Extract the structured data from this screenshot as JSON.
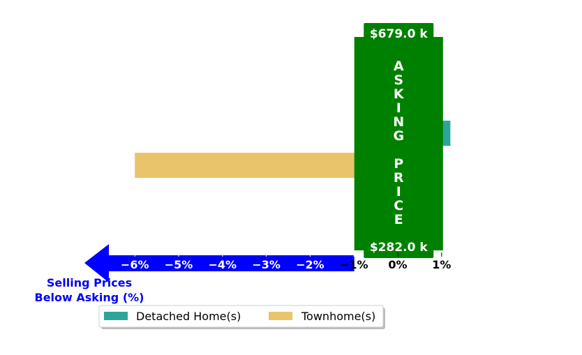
{
  "chart_data": {
    "type": "bar",
    "orientation": "horizontal",
    "x_unit": "percent relative to asking price",
    "xlim": [
      -6.0,
      1.0
    ],
    "x_ticks": [
      -6,
      -5,
      -4,
      -3,
      -2,
      -1,
      0,
      1
    ],
    "x_tick_labels": [
      "−6%",
      "−5%",
      "−4%",
      "−3%",
      "−2%",
      "−1%",
      "0%",
      "1%"
    ],
    "series": [
      {
        "name": "Detached Home(s)",
        "value": 1.2,
        "color": "#2ca59a"
      },
      {
        "name": "Townhome(s)",
        "value": -6.0,
        "color": "#e9c46a"
      }
    ],
    "asking_price_band": {
      "label": "ASKING PRICE",
      "top_price": "$679.0 k",
      "bottom_price": "$282.0 k",
      "x_range": [
        -1.0,
        1.0
      ],
      "color": "#008000"
    },
    "below_asking_arrow": {
      "label_line1": "Selling Prices",
      "label_line2": "Below Asking (%)",
      "color": "#0000ff"
    },
    "legend": {
      "placement": "bottom-center",
      "items": [
        "Detached Home(s)",
        "Townhome(s)"
      ]
    }
  }
}
